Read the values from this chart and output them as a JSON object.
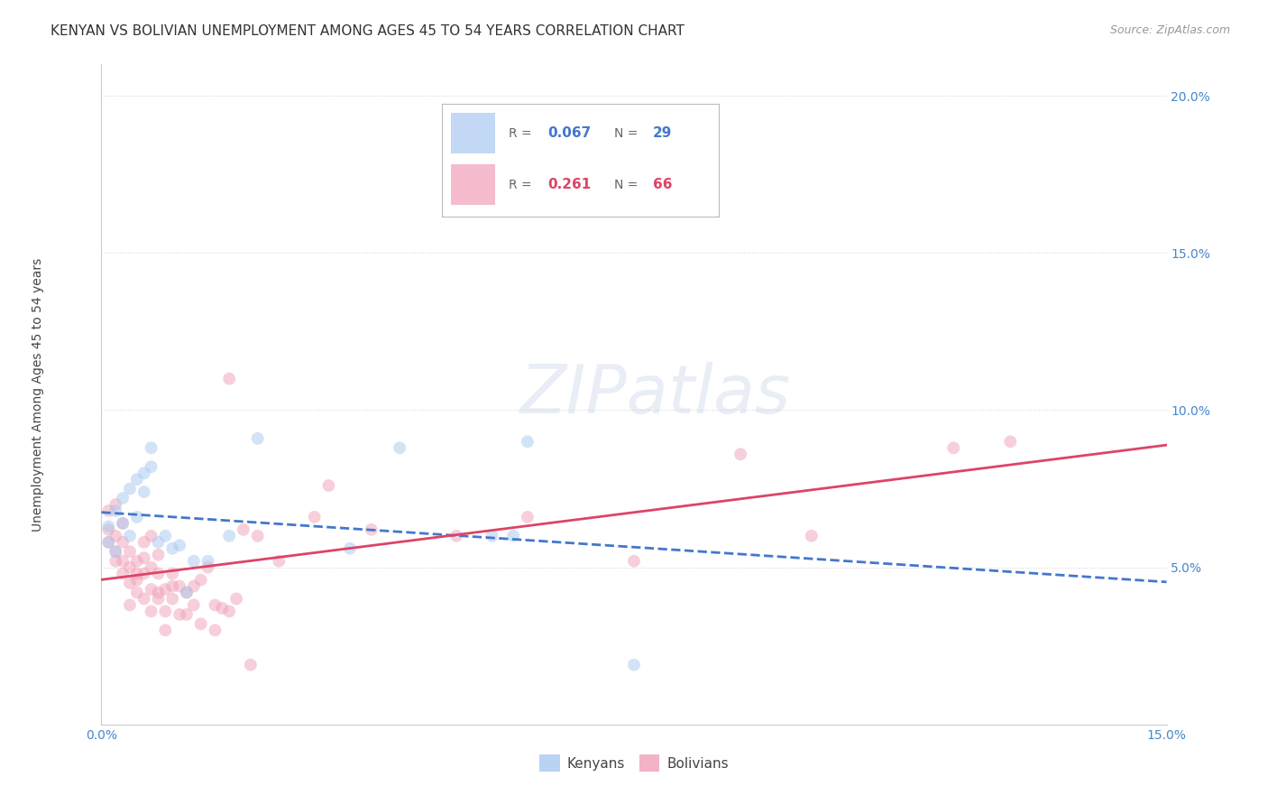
{
  "title": "KENYAN VS BOLIVIAN UNEMPLOYMENT AMONG AGES 45 TO 54 YEARS CORRELATION CHART",
  "source": "Source: ZipAtlas.com",
  "ylabel_label": "Unemployment Among Ages 45 to 54 years",
  "xlim": [
    0.0,
    0.15
  ],
  "ylim": [
    0.0,
    0.21
  ],
  "xticks": [
    0.0,
    0.03,
    0.06,
    0.09,
    0.12,
    0.15
  ],
  "yticks": [
    0.0,
    0.05,
    0.1,
    0.15,
    0.2
  ],
  "xticklabels": [
    "0.0%",
    "",
    "",
    "",
    "",
    "15.0%"
  ],
  "yticklabels": [
    "",
    "5.0%",
    "10.0%",
    "15.0%",
    "20.0%"
  ],
  "background_color": "#ffffff",
  "grid_color": "#cccccc",
  "kenyan_color": "#a8c8f0",
  "bolivian_color": "#f0a0b8",
  "kenyan_line_color": "#4477cc",
  "bolivian_line_color": "#dd4466",
  "kenyan_R": 0.067,
  "kenyan_N": 29,
  "bolivian_R": 0.261,
  "bolivian_N": 66,
  "kenyan_x": [
    0.001,
    0.001,
    0.002,
    0.002,
    0.003,
    0.003,
    0.004,
    0.004,
    0.005,
    0.005,
    0.006,
    0.006,
    0.007,
    0.007,
    0.008,
    0.009,
    0.01,
    0.011,
    0.012,
    0.013,
    0.015,
    0.018,
    0.022,
    0.035,
    0.042,
    0.055,
    0.058,
    0.06,
    0.075
  ],
  "kenyan_y": [
    0.058,
    0.063,
    0.055,
    0.068,
    0.064,
    0.072,
    0.075,
    0.06,
    0.078,
    0.066,
    0.074,
    0.08,
    0.082,
    0.088,
    0.058,
    0.06,
    0.056,
    0.057,
    0.042,
    0.052,
    0.052,
    0.06,
    0.091,
    0.056,
    0.088,
    0.06,
    0.06,
    0.09,
    0.019
  ],
  "bolivian_x": [
    0.001,
    0.001,
    0.001,
    0.002,
    0.002,
    0.002,
    0.002,
    0.003,
    0.003,
    0.003,
    0.003,
    0.004,
    0.004,
    0.004,
    0.004,
    0.005,
    0.005,
    0.005,
    0.005,
    0.006,
    0.006,
    0.006,
    0.006,
    0.007,
    0.007,
    0.007,
    0.007,
    0.008,
    0.008,
    0.008,
    0.008,
    0.009,
    0.009,
    0.009,
    0.01,
    0.01,
    0.01,
    0.011,
    0.011,
    0.012,
    0.012,
    0.013,
    0.013,
    0.014,
    0.014,
    0.015,
    0.016,
    0.016,
    0.017,
    0.018,
    0.018,
    0.019,
    0.02,
    0.021,
    0.022,
    0.025,
    0.03,
    0.032,
    0.038,
    0.05,
    0.06,
    0.075,
    0.09,
    0.1,
    0.12,
    0.128
  ],
  "bolivian_y": [
    0.058,
    0.062,
    0.068,
    0.052,
    0.055,
    0.06,
    0.07,
    0.048,
    0.052,
    0.058,
    0.064,
    0.045,
    0.05,
    0.055,
    0.038,
    0.048,
    0.052,
    0.046,
    0.042,
    0.048,
    0.053,
    0.058,
    0.04,
    0.05,
    0.043,
    0.036,
    0.06,
    0.042,
    0.048,
    0.054,
    0.04,
    0.043,
    0.036,
    0.03,
    0.044,
    0.048,
    0.04,
    0.044,
    0.035,
    0.042,
    0.035,
    0.044,
    0.038,
    0.032,
    0.046,
    0.05,
    0.038,
    0.03,
    0.037,
    0.036,
    0.11,
    0.04,
    0.062,
    0.019,
    0.06,
    0.052,
    0.066,
    0.076,
    0.062,
    0.06,
    0.066,
    0.052,
    0.086,
    0.06,
    0.088,
    0.09
  ],
  "marker_size": 100,
  "marker_alpha": 0.5,
  "title_fontsize": 11,
  "axis_label_fontsize": 10,
  "tick_fontsize": 10,
  "legend_fontsize": 12,
  "source_fontsize": 9
}
